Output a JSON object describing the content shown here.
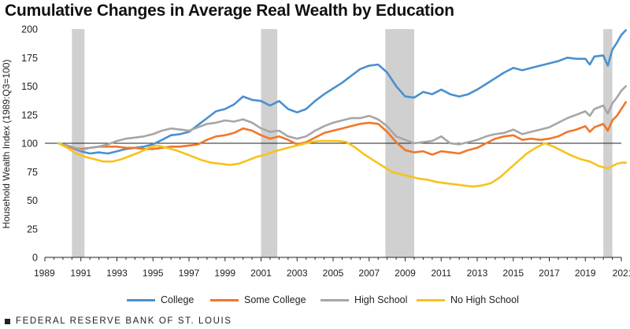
{
  "chart_data": {
    "type": "line",
    "title": "Cumulative Changes in Average Real Wealth by Education",
    "ylabel": "Household Wealth Index (1989:Q3=100)",
    "xlabel": "",
    "ylim": [
      0,
      200
    ],
    "xlim": [
      1989,
      2021
    ],
    "yticks": [
      0,
      25,
      50,
      75,
      100,
      125,
      150,
      175,
      200
    ],
    "xticks": [
      "1989",
      "1991",
      "1993",
      "1995",
      "1997",
      "1999",
      "2001",
      "2003",
      "2005",
      "2007",
      "2009",
      "2011",
      "2013",
      "2015",
      "2017",
      "2019",
      "2021"
    ],
    "reference_line": 100,
    "recessions": [
      [
        1990.5,
        1991.2
      ],
      [
        2001.0,
        2001.9
      ],
      [
        2007.9,
        2009.5
      ],
      [
        2020.0,
        2020.5
      ]
    ],
    "grid": false,
    "legend_position": "bottom",
    "series": [
      {
        "name": "College",
        "color": "#4a90d0",
        "points": [
          [
            1989.75,
            100
          ],
          [
            1990.5,
            96
          ],
          [
            1991,
            93
          ],
          [
            1991.5,
            91
          ],
          [
            1992,
            92
          ],
          [
            1992.5,
            91
          ],
          [
            1993,
            93
          ],
          [
            1993.5,
            95
          ],
          [
            1994,
            96
          ],
          [
            1994.5,
            97
          ],
          [
            1995,
            99
          ],
          [
            1995.5,
            103
          ],
          [
            1996,
            107
          ],
          [
            1996.5,
            108
          ],
          [
            1997,
            110
          ],
          [
            1997.5,
            116
          ],
          [
            1998,
            122
          ],
          [
            1998.5,
            128
          ],
          [
            1999,
            130
          ],
          [
            1999.5,
            134
          ],
          [
            2000,
            141
          ],
          [
            2000.5,
            138
          ],
          [
            2001,
            137
          ],
          [
            2001.5,
            133
          ],
          [
            2002,
            137
          ],
          [
            2002.5,
            130
          ],
          [
            2003,
            127
          ],
          [
            2003.5,
            130
          ],
          [
            2004,
            137
          ],
          [
            2004.5,
            143
          ],
          [
            2005,
            148
          ],
          [
            2005.5,
            153
          ],
          [
            2006,
            159
          ],
          [
            2006.5,
            165
          ],
          [
            2007,
            168
          ],
          [
            2007.5,
            169
          ],
          [
            2008,
            162
          ],
          [
            2008.5,
            150
          ],
          [
            2009,
            141
          ],
          [
            2009.5,
            140
          ],
          [
            2010,
            145
          ],
          [
            2010.5,
            143
          ],
          [
            2011,
            147
          ],
          [
            2011.5,
            143
          ],
          [
            2012,
            141
          ],
          [
            2012.5,
            143
          ],
          [
            2013,
            147
          ],
          [
            2013.5,
            152
          ],
          [
            2014,
            157
          ],
          [
            2014.5,
            162
          ],
          [
            2015,
            166
          ],
          [
            2015.5,
            164
          ],
          [
            2016,
            166
          ],
          [
            2016.5,
            168
          ],
          [
            2017,
            170
          ],
          [
            2017.5,
            172
          ],
          [
            2018,
            175
          ],
          [
            2018.5,
            174
          ],
          [
            2019,
            174
          ],
          [
            2019.25,
            169
          ],
          [
            2019.5,
            176
          ],
          [
            2020,
            177
          ],
          [
            2020.25,
            168
          ],
          [
            2020.5,
            182
          ],
          [
            2020.75,
            188
          ],
          [
            2021,
            195
          ],
          [
            2021.25,
            199
          ]
        ]
      },
      {
        "name": "Some College",
        "color": "#f0772a",
        "points": [
          [
            1989.75,
            100
          ],
          [
            1990.5,
            96
          ],
          [
            1991,
            95
          ],
          [
            1991.5,
            96
          ],
          [
            1992,
            97
          ],
          [
            1992.5,
            97
          ],
          [
            1993,
            97
          ],
          [
            1993.5,
            96
          ],
          [
            1994,
            96
          ],
          [
            1994.5,
            95
          ],
          [
            1995,
            95
          ],
          [
            1995.5,
            96
          ],
          [
            1996,
            97
          ],
          [
            1996.5,
            97
          ],
          [
            1997,
            98
          ],
          [
            1997.5,
            99
          ],
          [
            1998,
            103
          ],
          [
            1998.5,
            106
          ],
          [
            1999,
            107
          ],
          [
            1999.5,
            109
          ],
          [
            2000,
            113
          ],
          [
            2000.5,
            111
          ],
          [
            2001,
            107
          ],
          [
            2001.5,
            104
          ],
          [
            2002,
            106
          ],
          [
            2002.5,
            103
          ],
          [
            2003,
            99
          ],
          [
            2003.5,
            101
          ],
          [
            2004,
            105
          ],
          [
            2004.5,
            109
          ],
          [
            2005,
            111
          ],
          [
            2005.5,
            113
          ],
          [
            2006,
            115
          ],
          [
            2006.5,
            117
          ],
          [
            2007,
            118
          ],
          [
            2007.5,
            117
          ],
          [
            2008,
            110
          ],
          [
            2008.5,
            101
          ],
          [
            2009,
            94
          ],
          [
            2009.5,
            92
          ],
          [
            2010,
            93
          ],
          [
            2010.5,
            90
          ],
          [
            2011,
            93
          ],
          [
            2011.5,
            92
          ],
          [
            2012,
            91
          ],
          [
            2012.5,
            94
          ],
          [
            2013,
            96
          ],
          [
            2013.5,
            100
          ],
          [
            2014,
            104
          ],
          [
            2014.5,
            106
          ],
          [
            2015,
            107
          ],
          [
            2015.5,
            103
          ],
          [
            2016,
            104
          ],
          [
            2016.5,
            103
          ],
          [
            2017,
            104
          ],
          [
            2017.5,
            106
          ],
          [
            2018,
            110
          ],
          [
            2018.5,
            112
          ],
          [
            2019,
            115
          ],
          [
            2019.25,
            110
          ],
          [
            2019.5,
            114
          ],
          [
            2020,
            117
          ],
          [
            2020.25,
            111
          ],
          [
            2020.5,
            120
          ],
          [
            2020.75,
            124
          ],
          [
            2021,
            130
          ],
          [
            2021.25,
            136
          ]
        ]
      },
      {
        "name": "High School",
        "color": "#a6a6a6",
        "points": [
          [
            1989.75,
            100
          ],
          [
            1990.5,
            97
          ],
          [
            1991,
            94
          ],
          [
            1991.5,
            96
          ],
          [
            1992,
            97
          ],
          [
            1992.5,
            99
          ],
          [
            1993,
            102
          ],
          [
            1993.5,
            104
          ],
          [
            1994,
            105
          ],
          [
            1994.5,
            106
          ],
          [
            1995,
            108
          ],
          [
            1995.5,
            111
          ],
          [
            1996,
            113
          ],
          [
            1996.5,
            112
          ],
          [
            1997,
            111
          ],
          [
            1997.5,
            114
          ],
          [
            1998,
            117
          ],
          [
            1998.5,
            118
          ],
          [
            1999,
            120
          ],
          [
            1999.5,
            119
          ],
          [
            2000,
            121
          ],
          [
            2000.5,
            118
          ],
          [
            2001,
            113
          ],
          [
            2001.5,
            110
          ],
          [
            2002,
            111
          ],
          [
            2002.5,
            106
          ],
          [
            2003,
            104
          ],
          [
            2003.5,
            106
          ],
          [
            2004,
            111
          ],
          [
            2004.5,
            115
          ],
          [
            2005,
            118
          ],
          [
            2005.5,
            120
          ],
          [
            2006,
            122
          ],
          [
            2006.5,
            122
          ],
          [
            2007,
            124
          ],
          [
            2007.5,
            121
          ],
          [
            2008,
            115
          ],
          [
            2008.5,
            106
          ],
          [
            2009,
            103
          ],
          [
            2009.5,
            100
          ],
          [
            2010,
            101
          ],
          [
            2010.5,
            102
          ],
          [
            2011,
            106
          ],
          [
            2011.5,
            100
          ],
          [
            2012,
            99
          ],
          [
            2012.5,
            101
          ],
          [
            2013,
            103
          ],
          [
            2013.5,
            106
          ],
          [
            2014,
            108
          ],
          [
            2014.5,
            109
          ],
          [
            2015,
            112
          ],
          [
            2015.5,
            108
          ],
          [
            2016,
            110
          ],
          [
            2016.5,
            112
          ],
          [
            2017,
            114
          ],
          [
            2017.5,
            118
          ],
          [
            2018,
            122
          ],
          [
            2018.5,
            125
          ],
          [
            2019,
            128
          ],
          [
            2019.25,
            124
          ],
          [
            2019.5,
            130
          ],
          [
            2020,
            133
          ],
          [
            2020.25,
            126
          ],
          [
            2020.5,
            135
          ],
          [
            2020.75,
            140
          ],
          [
            2021,
            146
          ],
          [
            2021.25,
            150
          ]
        ]
      },
      {
        "name": "No High School",
        "color": "#f7c31b",
        "points": [
          [
            1989.75,
            100
          ],
          [
            1990.25,
            96
          ],
          [
            1990.75,
            91
          ],
          [
            1991.25,
            88
          ],
          [
            1991.75,
            86
          ],
          [
            1992.25,
            84
          ],
          [
            1992.75,
            84
          ],
          [
            1993.25,
            86
          ],
          [
            1993.75,
            89
          ],
          [
            1994.25,
            92
          ],
          [
            1994.75,
            96
          ],
          [
            1995.25,
            98
          ],
          [
            1995.75,
            96
          ],
          [
            1996.25,
            94
          ],
          [
            1996.75,
            91
          ],
          [
            1997.25,
            88
          ],
          [
            1997.75,
            85
          ],
          [
            1998.25,
            83
          ],
          [
            1998.75,
            82
          ],
          [
            1999.25,
            81
          ],
          [
            1999.75,
            82
          ],
          [
            2000.25,
            85
          ],
          [
            2000.75,
            88
          ],
          [
            2001.25,
            90
          ],
          [
            2001.75,
            93
          ],
          [
            2002.25,
            95
          ],
          [
            2002.75,
            97
          ],
          [
            2003.25,
            99
          ],
          [
            2003.75,
            101
          ],
          [
            2004.25,
            102
          ],
          [
            2004.75,
            102
          ],
          [
            2005.25,
            102
          ],
          [
            2005.75,
            101
          ],
          [
            2006.25,
            96
          ],
          [
            2006.75,
            90
          ],
          [
            2007.25,
            85
          ],
          [
            2007.75,
            80
          ],
          [
            2008.25,
            75
          ],
          [
            2008.75,
            73
          ],
          [
            2009.25,
            71
          ],
          [
            2009.75,
            69
          ],
          [
            2010.25,
            68
          ],
          [
            2010.75,
            66
          ],
          [
            2011.25,
            65
          ],
          [
            2011.75,
            64
          ],
          [
            2012.25,
            63
          ],
          [
            2012.75,
            62
          ],
          [
            2013.25,
            63
          ],
          [
            2013.75,
            65
          ],
          [
            2014.25,
            70
          ],
          [
            2014.75,
            77
          ],
          [
            2015.25,
            84
          ],
          [
            2015.75,
            91
          ],
          [
            2016.25,
            96
          ],
          [
            2016.75,
            100
          ],
          [
            2017.25,
            97
          ],
          [
            2017.75,
            93
          ],
          [
            2018.25,
            89
          ],
          [
            2018.75,
            86
          ],
          [
            2019.25,
            84
          ],
          [
            2019.75,
            80
          ],
          [
            2020.25,
            78
          ],
          [
            2020.5,
            80
          ],
          [
            2020.75,
            82
          ],
          [
            2021,
            83
          ],
          [
            2021.25,
            83
          ]
        ]
      }
    ]
  },
  "footer": {
    "source": "FEDERAL RESERVE BANK OF ST. LOUIS"
  }
}
